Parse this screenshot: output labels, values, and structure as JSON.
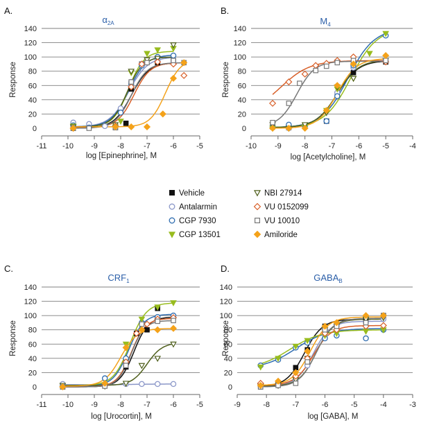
{
  "legend": [
    {
      "name": "Vehicle",
      "shape": "square",
      "color": "#111111",
      "filled": true
    },
    {
      "name": "Antalarmin",
      "shape": "circle",
      "color": "#8a96c8",
      "filled": false
    },
    {
      "name": "CGP 7930",
      "shape": "circle",
      "color": "#2f6db0",
      "filled": false
    },
    {
      "name": "CGP 13501",
      "shape": "tri-down",
      "color": "#98bc1e",
      "filled": true
    },
    {
      "name": "NBI 27914",
      "shape": "tri-down",
      "color": "#4f5f1c",
      "filled": false
    },
    {
      "name": "VU 0152099",
      "shape": "diamond",
      "color": "#d85f28",
      "filled": false
    },
    {
      "name": "VU 10010",
      "shape": "square",
      "color": "#777777",
      "filled": false
    },
    {
      "name": "Amiloride",
      "shape": "diamond",
      "color": "#f4a21a",
      "filled": true
    }
  ],
  "chart_data": [
    {
      "type": "scatter",
      "panel": "A.",
      "title": "α2A",
      "title_main": "α",
      "title_sub": "2A",
      "xlabel": "log [Epinephrine], M",
      "ylabel": "Response",
      "xlim": [
        -11,
        -5
      ],
      "ylim": [
        0,
        140
      ],
      "xticks": [
        -11,
        -10,
        -9,
        -8,
        -7,
        -6,
        -5
      ],
      "yticks": [
        0,
        20,
        40,
        60,
        80,
        100,
        120,
        140
      ],
      "series": [
        {
          "name": "Vehicle",
          "x": [
            -9.8,
            -8.2,
            -7.8,
            -7.6,
            -7.2,
            -6.6,
            -6
          ],
          "y": [
            0,
            1,
            7,
            55,
            90,
            92,
            95
          ],
          "curve": {
            "bottom": 0,
            "top": 92,
            "ec50": -7.6,
            "hill": 1.3
          }
        },
        {
          "name": "Antalarmin",
          "x": [
            -9.8,
            -9.2,
            -8.6,
            -8,
            -7.6,
            -7.2,
            -6.6,
            -6
          ],
          "y": [
            8,
            6,
            3,
            28,
            65,
            90,
            95,
            92
          ],
          "curve": {
            "bottom": 2,
            "top": 100,
            "ec50": -7.7,
            "hill": 1.2
          }
        },
        {
          "name": "CGP 7930",
          "x": [
            -9.8,
            -9.2,
            -8,
            -7.6,
            -7.2,
            -6.6,
            -6
          ],
          "y": [
            4,
            1,
            22,
            62,
            88,
            100,
            102
          ],
          "curve": {
            "bottom": 2,
            "top": 103,
            "ec50": -7.7,
            "hill": 1.3
          }
        },
        {
          "name": "CGP 13501",
          "x": [
            -9.8,
            -8.2,
            -8,
            -7.6,
            -7,
            -6.6,
            -6
          ],
          "y": [
            3,
            2,
            10,
            78,
            105,
            110,
            112
          ],
          "curve": {
            "bottom": 2,
            "top": 108,
            "ec50": -7.7,
            "hill": 1.5
          }
        },
        {
          "name": "NBI 27914",
          "x": [
            -9.8,
            -8.2,
            -7.6,
            -7,
            -6.6,
            -6
          ],
          "y": [
            2,
            5,
            80,
            96,
            98,
            117
          ],
          "curve": {
            "bottom": 2,
            "top": 100,
            "ec50": -7.75,
            "hill": 1.5
          }
        },
        {
          "name": "VU 0152099",
          "x": [
            -9.8,
            -8.2,
            -7.6,
            -7.2,
            -6.6,
            -6,
            -5.6
          ],
          "y": [
            0,
            3,
            58,
            90,
            93,
            90,
            74
          ],
          "curve": {
            "bottom": 1,
            "top": 92,
            "ec50": -7.5,
            "hill": 1.4
          }
        },
        {
          "name": "VU 10010",
          "x": [
            -9.8,
            -9.2,
            -8.2,
            -7.6,
            -7,
            -6,
            -5.6
          ],
          "y": [
            0,
            0,
            1,
            65,
            92,
            95,
            92
          ],
          "curve": {
            "bottom": 0,
            "top": 92,
            "ec50": -7.6,
            "hill": 1.4
          }
        },
        {
          "name": "Amiloride",
          "x": [
            -9.8,
            -8.2,
            -7.6,
            -7,
            -6.4,
            -6,
            -5.6
          ],
          "y": [
            0,
            2,
            2,
            2,
            20,
            70,
            92
          ],
          "curve": {
            "bottom": 2,
            "top": 97,
            "ec50": -6.3,
            "hill": 1.5
          }
        }
      ]
    },
    {
      "type": "scatter",
      "panel": "B.",
      "title": "M4",
      "title_main": "M",
      "title_sub": "4",
      "xlabel": "log [Acetylcholine], M",
      "ylabel": "Response",
      "xlim": [
        -10,
        -4
      ],
      "ylim": [
        0,
        140
      ],
      "xticks": [
        -10,
        -9,
        -8,
        -7,
        -6,
        -5,
        -4
      ],
      "yticks": [
        0,
        20,
        40,
        60,
        80,
        100,
        120,
        140
      ],
      "series": [
        {
          "name": "Vehicle",
          "x": [
            -9.2,
            -8.6,
            -8,
            -7.2,
            -6.8,
            -6.2,
            -5
          ],
          "y": [
            2,
            1,
            4,
            10,
            48,
            78,
            93
          ],
          "curve": {
            "bottom": 1,
            "top": 95,
            "ec50": -6.8,
            "hill": 1.1
          }
        },
        {
          "name": "Antalarmin",
          "x": [
            -9.2,
            -8.6,
            -8,
            -7.2,
            -6.8,
            -6.2,
            -5
          ],
          "y": [
            1,
            0,
            2,
            10,
            50,
            85,
            95
          ],
          "curve": {
            "bottom": 1,
            "top": 96,
            "ec50": -6.8,
            "hill": 1.1
          }
        },
        {
          "name": "CGP 7930",
          "x": [
            -9.2,
            -8.6,
            -8,
            -7.2,
            -6.8,
            -6.2,
            -5
          ],
          "y": [
            1,
            5,
            4,
            10,
            45,
            88,
            130
          ],
          "curve": {
            "bottom": 1,
            "top": 140,
            "ec50": -6.4,
            "hill": 0.9
          }
        },
        {
          "name": "CGP 13501",
          "x": [
            -9.2,
            -8.6,
            -8,
            -7.2,
            -6.8,
            -6.2,
            -5.6,
            -5
          ],
          "y": [
            0,
            0,
            2,
            25,
            55,
            70,
            105,
            133
          ],
          "curve": {
            "bottom": 1,
            "top": 140,
            "ec50": -6.3,
            "hill": 0.9
          }
        },
        {
          "name": "NBI 27914",
          "x": [
            -9.2,
            -8.6,
            -8,
            -7.2,
            -6.8,
            -6.2,
            -5
          ],
          "y": [
            5,
            0,
            5,
            22,
            58,
            70,
            95
          ],
          "curve": {
            "bottom": 1,
            "top": 96,
            "ec50": -6.8,
            "hill": 1.1
          }
        },
        {
          "name": "VU 0152099",
          "x": [
            -9.2,
            -8.6,
            -8,
            -7.6,
            -7.2,
            -6.8,
            -6.2,
            -5
          ],
          "y": [
            35,
            65,
            76,
            88,
            91,
            95,
            100,
            93
          ],
          "curve": {
            "bottom": 20,
            "top": 95,
            "ec50": -8.9,
            "hill": 0.8
          }
        },
        {
          "name": "VU 10010",
          "x": [
            -9.2,
            -8.6,
            -8.2,
            -7.6,
            -7.2,
            -6.8,
            -6.2,
            -5
          ],
          "y": [
            8,
            35,
            63,
            81,
            87,
            92,
            95,
            95
          ],
          "curve": {
            "bottom": 2,
            "top": 94,
            "ec50": -8.3,
            "hill": 1.3
          }
        },
        {
          "name": "Amiloride",
          "x": [
            -9.2,
            -8.6,
            -8,
            -7.2,
            -6.8,
            -6.2,
            -5
          ],
          "y": [
            0,
            0,
            0,
            25,
            60,
            90,
            102
          ],
          "curve": {
            "bottom": 0,
            "top": 98,
            "ec50": -6.8,
            "hill": 1.2
          }
        }
      ]
    },
    {
      "type": "scatter",
      "panel": "C.",
      "title": "CRF1",
      "title_main": "CRF",
      "title_sub": "1",
      "xlabel": "log [Urocortin], M",
      "ylabel": "Response",
      "xlim": [
        -11,
        -5
      ],
      "ylim": [
        0,
        140
      ],
      "xticks": [
        -11,
        -10,
        -9,
        -8,
        -7,
        -6,
        -5
      ],
      "yticks": [
        0,
        20,
        40,
        60,
        80,
        100,
        120,
        140
      ],
      "series": [
        {
          "name": "Vehicle",
          "x": [
            -10.2,
            -8.6,
            -7.8,
            -7.4,
            -7,
            -6.6,
            -6
          ],
          "y": [
            0,
            2,
            28,
            75,
            80,
            110,
            98
          ],
          "curve": {
            "bottom": 0,
            "top": 98,
            "ec50": -7.5,
            "hill": 1.6
          }
        },
        {
          "name": "Antalarmin",
          "x": [
            -10.2,
            -8.6,
            -7.8,
            -7.2,
            -6.6,
            -6
          ],
          "y": [
            4,
            2,
            4,
            4,
            4,
            4
          ],
          "curve": {
            "bottom": 3,
            "top": 4,
            "ec50": -7.5,
            "hill": 1
          }
        },
        {
          "name": "CGP 7930",
          "x": [
            -10.2,
            -8.6,
            -7.8,
            -7.2,
            -6.6,
            -6
          ],
          "y": [
            1,
            12,
            40,
            90,
            98,
            100
          ],
          "curve": {
            "bottom": 1,
            "top": 102,
            "ec50": -7.7,
            "hill": 1.5
          }
        },
        {
          "name": "CGP 13501",
          "x": [
            -10.2,
            -8.6,
            -7.8,
            -7.2,
            -6.6,
            -6
          ],
          "y": [
            2,
            2,
            60,
            95,
            112,
            118
          ],
          "curve": {
            "bottom": 2,
            "top": 118,
            "ec50": -7.65,
            "hill": 1.4
          }
        },
        {
          "name": "NBI 27914",
          "x": [
            -10.2,
            -8.6,
            -7.8,
            -7.2,
            -6.6,
            -6
          ],
          "y": [
            2,
            1,
            5,
            30,
            40,
            60
          ],
          "curve": {
            "bottom": 2,
            "top": 62,
            "ec50": -7,
            "hill": 1.5
          }
        },
        {
          "name": "VU 0152099",
          "x": [
            -10.2,
            -8.6,
            -7.8,
            -7.4,
            -7,
            -6.6,
            -6
          ],
          "y": [
            0,
            2,
            35,
            75,
            88,
            95,
            97
          ],
          "curve": {
            "bottom": 0,
            "top": 96,
            "ec50": -7.6,
            "hill": 1.6
          }
        },
        {
          "name": "VU 10010",
          "x": [
            -10.2,
            -8.6,
            -7.8,
            -7.2,
            -6.6,
            -6
          ],
          "y": [
            0,
            1,
            30,
            88,
            92,
            93
          ],
          "curve": {
            "bottom": 0,
            "top": 93,
            "ec50": -7.6,
            "hill": 1.7
          }
        },
        {
          "name": "Amiloride",
          "x": [
            -10.2,
            -8.6,
            -7.8,
            -7.2,
            -6.6,
            -6
          ],
          "y": [
            0,
            5,
            55,
            80,
            80,
            82
          ],
          "curve": {
            "bottom": 1,
            "top": 82,
            "ec50": -8,
            "hill": 1.4
          }
        }
      ]
    },
    {
      "type": "scatter",
      "panel": "D.",
      "title": "GABAB",
      "title_main": "GABA",
      "title_sub": "B",
      "xlabel": "log [GABA], M",
      "ylabel": "Response",
      "xlim": [
        -9,
        -3
      ],
      "ylim": [
        0,
        140
      ],
      "xticks": [
        -9,
        -8,
        -7,
        -6,
        -5,
        -4,
        -3
      ],
      "yticks": [
        0,
        20,
        40,
        60,
        80,
        100,
        120,
        140
      ],
      "series": [
        {
          "name": "Vehicle",
          "x": [
            -8.2,
            -7.6,
            -7,
            -6.6,
            -6,
            -5.6,
            -4.6,
            -4
          ],
          "y": [
            0,
            5,
            27,
            52,
            85,
            88,
            95,
            100
          ],
          "curve": {
            "bottom": 0,
            "top": 95,
            "ec50": -6.7,
            "hill": 1.4
          }
        },
        {
          "name": "Antalarmin",
          "x": [
            -8.2,
            -7.6,
            -7,
            -6.6,
            -6,
            -5.6,
            -4.6,
            -4
          ],
          "y": [
            1,
            2,
            10,
            30,
            72,
            85,
            90,
            95
          ],
          "curve": {
            "bottom": 1,
            "top": 92,
            "ec50": -6.4,
            "hill": 1.5
          }
        },
        {
          "name": "CGP 7930",
          "x": [
            -8.2,
            -7.6,
            -7,
            -6.6,
            -6,
            -5.6,
            -4.6,
            -4
          ],
          "y": [
            30,
            38,
            55,
            62,
            68,
            72,
            68,
            80
          ],
          "curve": {
            "bottom": 25,
            "top": 82,
            "ec50": -7,
            "hill": 0.8
          }
        },
        {
          "name": "CGP 13501",
          "x": [
            -8.2,
            -7.6,
            -7,
            -6.6,
            -6,
            -5.6,
            -4.6,
            -4
          ],
          "y": [
            28,
            40,
            57,
            65,
            72,
            75,
            78,
            80
          ],
          "curve": {
            "bottom": 25,
            "top": 80,
            "ec50": -7.2,
            "hill": 0.8
          }
        },
        {
          "name": "NBI 27914",
          "x": [
            -8.2,
            -7.6,
            -7,
            -6.6,
            -6,
            -5.6,
            -4.6,
            -4
          ],
          "y": [
            1,
            2,
            10,
            40,
            80,
            85,
            95,
            97
          ],
          "curve": {
            "bottom": 1,
            "top": 95,
            "ec50": -6.3,
            "hill": 1.5
          }
        },
        {
          "name": "VU 0152099",
          "x": [
            -8.2,
            -7.6,
            -7,
            -6.6,
            -6,
            -5.6,
            -4.6,
            -4
          ],
          "y": [
            5,
            3,
            15,
            40,
            75,
            80,
            85,
            86
          ],
          "curve": {
            "bottom": 2,
            "top": 86,
            "ec50": -6.4,
            "hill": 1.4
          }
        },
        {
          "name": "VU 10010",
          "x": [
            -8.2,
            -7.6,
            -7,
            -6.6,
            -6,
            -5.6,
            -4.6,
            -4
          ],
          "y": [
            0,
            2,
            5,
            35,
            80,
            85,
            90,
            100
          ],
          "curve": {
            "bottom": 0,
            "top": 96,
            "ec50": -6.3,
            "hill": 1.5
          }
        },
        {
          "name": "Amiloride",
          "x": [
            -8.2,
            -7.6,
            -7,
            -6.6,
            -6,
            -5.6,
            -4.6,
            -4
          ],
          "y": [
            2,
            8,
            20,
            50,
            85,
            90,
            100,
            100
          ],
          "curve": {
            "bottom": 2,
            "top": 98,
            "ec50": -6.5,
            "hill": 1.4
          }
        }
      ]
    }
  ]
}
